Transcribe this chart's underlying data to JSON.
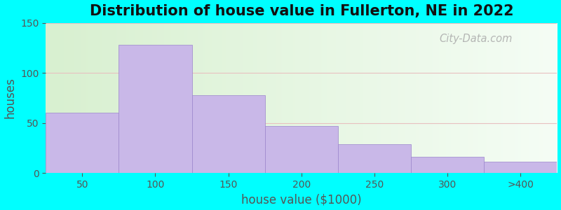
{
  "title": "Distribution of house value in Fullerton, NE in 2022",
  "xlabel": "house value ($1000)",
  "ylabel": "houses",
  "bar_labels": [
    "50",
    "100",
    "150",
    "200",
    "250",
    "300",
    ">400"
  ],
  "bar_values": [
    60,
    128,
    78,
    47,
    29,
    16,
    11
  ],
  "bar_color": "#C9B8E8",
  "bar_edge_color": "#9B85CC",
  "bar_linewidth": 0.5,
  "ylim": [
    0,
    150
  ],
  "yticks": [
    0,
    50,
    100,
    150
  ],
  "bg_color_left": "#d8f0d0",
  "bg_color_right": "#f5fdf5",
  "outer_bg": "#00FFFF",
  "grid_color": "#e8c0c0",
  "title_fontsize": 15,
  "axis_label_fontsize": 12,
  "tick_fontsize": 10,
  "tick_color": "#555555",
  "watermark_text": "City-Data.com"
}
